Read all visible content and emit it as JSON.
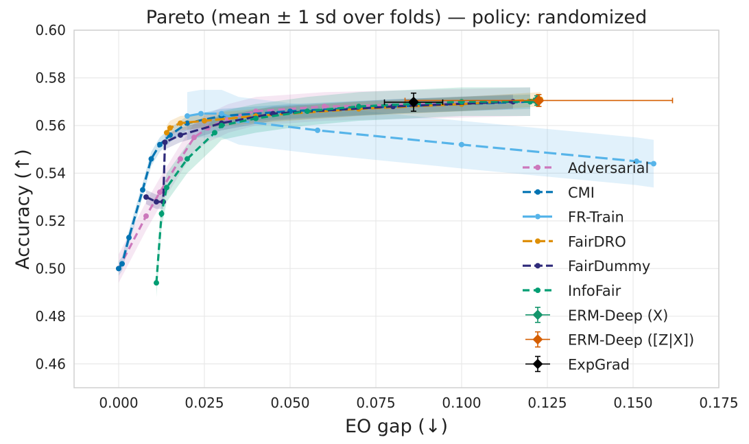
{
  "chart_data": {
    "type": "line",
    "title": "Pareto (mean ± 1 sd over folds) — policy: randomized",
    "xlabel": "EO gap (↓)",
    "ylabel": "Accuracy (↑)",
    "xlim": [
      -0.013,
      0.175
    ],
    "ylim": [
      0.45,
      0.6
    ],
    "xticks": [
      0.0,
      0.025,
      0.05,
      0.075,
      0.1,
      0.125,
      0.15,
      0.175
    ],
    "xtick_labels": [
      "0.000",
      "0.025",
      "0.050",
      "0.075",
      "0.100",
      "0.125",
      "0.150",
      "0.175"
    ],
    "yticks": [
      0.46,
      0.48,
      0.5,
      0.52,
      0.54,
      0.56,
      0.58,
      0.6
    ],
    "ytick_labels": [
      "0.46",
      "0.48",
      "0.50",
      "0.52",
      "0.54",
      "0.56",
      "0.58",
      "0.60"
    ],
    "grid": true,
    "legend_position": "lower-right",
    "series": [
      {
        "name": "Adversarial",
        "color": "#cc78bc",
        "dash": "10,6",
        "points": [
          [
            0.0,
            0.5
          ],
          [
            0.008,
            0.522
          ],
          [
            0.012,
            0.532
          ],
          [
            0.018,
            0.546
          ],
          [
            0.022,
            0.555
          ],
          [
            0.026,
            0.559
          ],
          [
            0.032,
            0.563
          ],
          [
            0.04,
            0.566
          ],
          [
            0.06,
            0.568
          ],
          [
            0.09,
            0.569
          ],
          [
            0.12,
            0.57
          ]
        ],
        "band": 0.006
      },
      {
        "name": "CMI",
        "color": "#0173b2",
        "dash": "12,5",
        "points": [
          [
            0.0,
            0.5
          ],
          [
            0.001,
            0.502
          ],
          [
            0.003,
            0.513
          ],
          [
            0.007,
            0.533
          ],
          [
            0.0095,
            0.546
          ],
          [
            0.012,
            0.552
          ],
          [
            0.015,
            0.556
          ],
          [
            0.02,
            0.561
          ],
          [
            0.03,
            0.564
          ],
          [
            0.05,
            0.566
          ],
          [
            0.08,
            0.568
          ],
          [
            0.1,
            0.569
          ],
          [
            0.12,
            0.57
          ]
        ],
        "band": 0.003
      },
      {
        "name": "FR-Train",
        "color": "#56b4e9",
        "dash": "18,7",
        "points": [
          [
            0.02,
            0.564
          ],
          [
            0.024,
            0.565
          ],
          [
            0.03,
            0.565
          ],
          [
            0.035,
            0.562
          ],
          [
            0.058,
            0.558
          ],
          [
            0.1,
            0.552
          ],
          [
            0.151,
            0.545
          ],
          [
            0.156,
            0.544
          ]
        ],
        "band": 0.01
      },
      {
        "name": "FairDRO",
        "color": "#de8f05",
        "dash": "14,5",
        "points": [
          [
            0.014,
            0.557
          ],
          [
            0.015,
            0.559
          ],
          [
            0.018,
            0.561
          ],
          [
            0.025,
            0.562
          ],
          [
            0.04,
            0.564
          ],
          [
            0.07,
            0.567
          ],
          [
            0.1,
            0.569
          ],
          [
            0.123,
            0.571
          ]
        ],
        "band": 0.003
      },
      {
        "name": "FairDummy",
        "color": "#2e2a7a",
        "dash": "12,5",
        "points": [
          [
            0.008,
            0.53
          ],
          [
            0.011,
            0.528
          ],
          [
            0.013,
            0.528
          ],
          [
            0.0135,
            0.553
          ],
          [
            0.018,
            0.556
          ],
          [
            0.03,
            0.561
          ],
          [
            0.045,
            0.565
          ],
          [
            0.08,
            0.568
          ],
          [
            0.115,
            0.57
          ]
        ],
        "band": 0.003
      },
      {
        "name": "InfoFair",
        "color": "#029e73",
        "dash": "10,6",
        "points": [
          [
            0.011,
            0.494
          ],
          [
            0.0125,
            0.523
          ],
          [
            0.014,
            0.534
          ],
          [
            0.02,
            0.546
          ],
          [
            0.028,
            0.557
          ],
          [
            0.03,
            0.56
          ],
          [
            0.04,
            0.563
          ],
          [
            0.055,
            0.566
          ],
          [
            0.07,
            0.568
          ],
          [
            0.1,
            0.57
          ],
          [
            0.12,
            0.57
          ]
        ],
        "band": 0.006
      }
    ],
    "errorbar_series": [
      {
        "name": "ERM-Deep (X)",
        "color": "#14956b",
        "x": 0.122,
        "y": 0.5705,
        "xerr": 0.001,
        "yerr": 0.002
      },
      {
        "name": "ERM-Deep ([Z|X])",
        "color": "#d55e00",
        "x": 0.1225,
        "y": 0.5705,
        "xerr": 0.039,
        "yerr": 0.0025
      },
      {
        "name": "ExpGrad",
        "color": "#000000",
        "x": 0.086,
        "y": 0.5698,
        "xerr": 0.0085,
        "yerr": 0.0038
      }
    ]
  }
}
